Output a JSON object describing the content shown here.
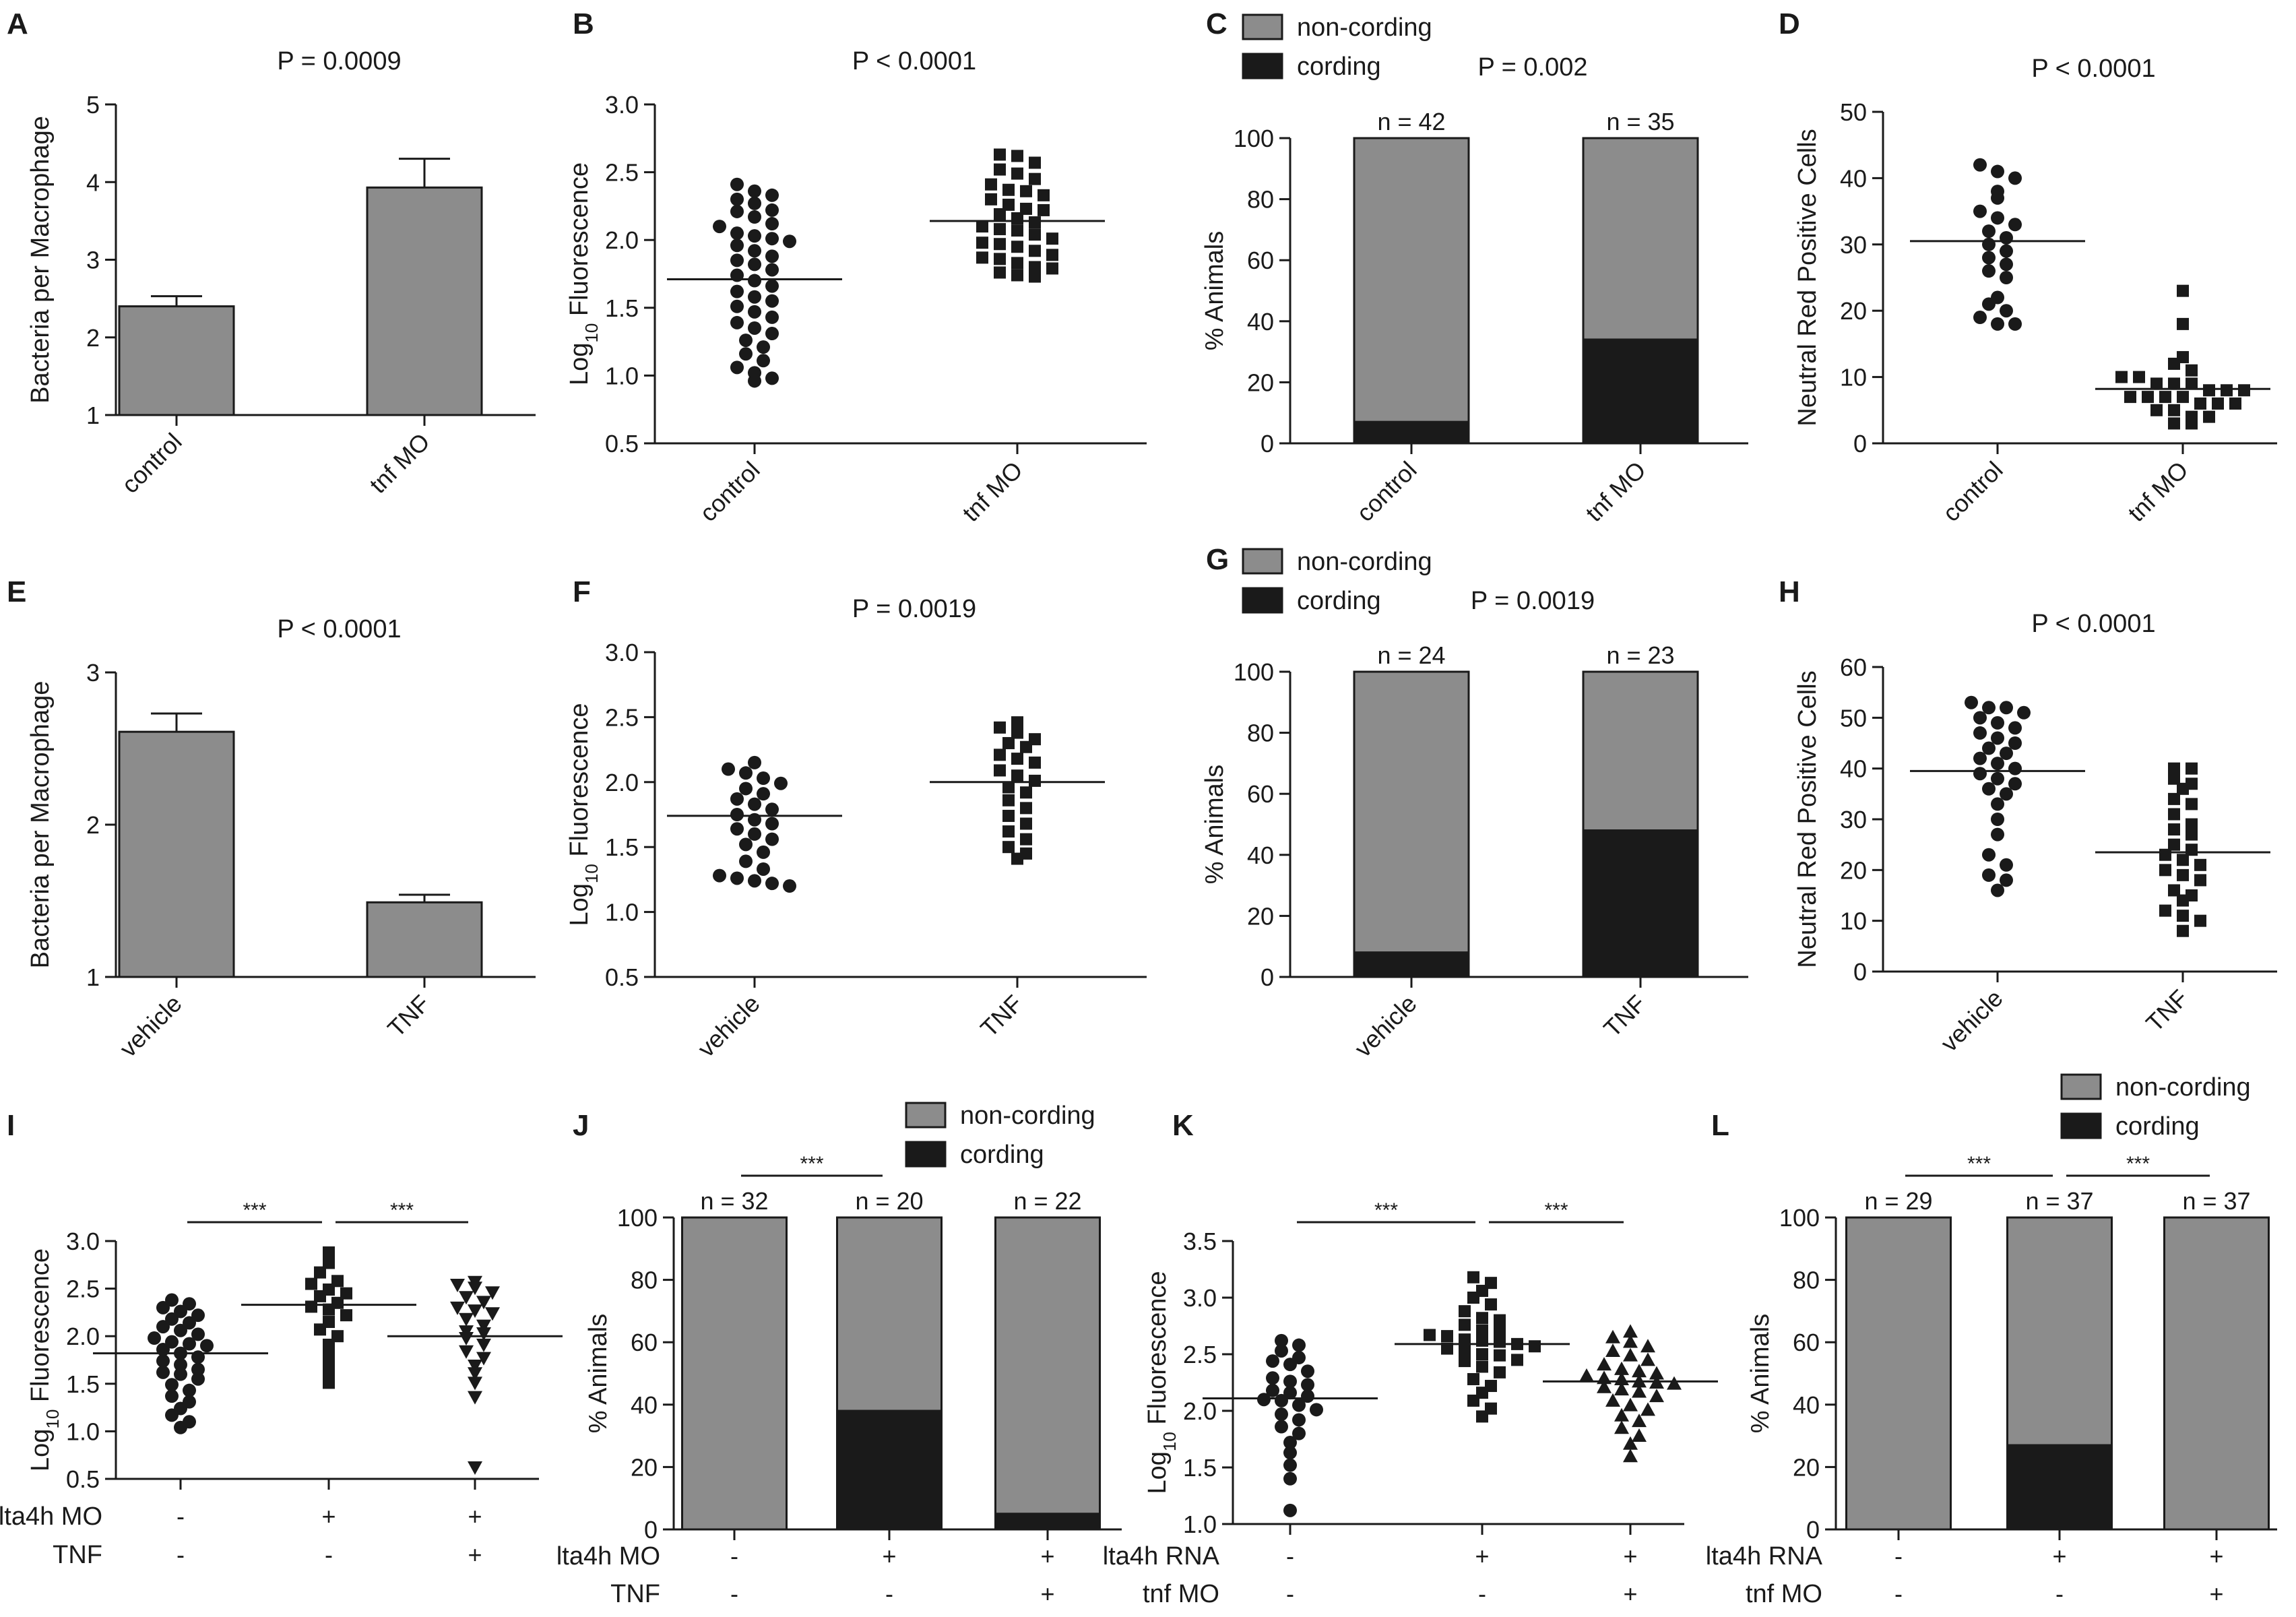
{
  "colors": {
    "ink": "#1a1a1a",
    "gray_bar": "#8c8c8c",
    "cording": "#1a1a1a",
    "noncording": "#8c8c8c"
  },
  "chart_data": [
    {
      "panel": "A",
      "type": "bar",
      "title": "P = 0.0009",
      "ylabel": "Bacteria per Macrophage",
      "ylim": [
        1,
        5
      ],
      "yticks": [
        1,
        2,
        3,
        4,
        5
      ],
      "categories": [
        "control",
        "tnf MO"
      ],
      "values": [
        2.4,
        3.93
      ],
      "errors": [
        0.13,
        0.37
      ]
    },
    {
      "panel": "B",
      "type": "scatter",
      "title": "P < 0.0001",
      "ylabel": "Log10 Fluorescence",
      "ylim": [
        0.5,
        3.0
      ],
      "yticks": [
        0.5,
        1.0,
        1.5,
        2.0,
        2.5,
        3.0
      ],
      "categories": [
        "control",
        "tnf MO"
      ],
      "markers": [
        "circle",
        "square"
      ],
      "means": [
        1.71,
        2.14
      ],
      "groups": [
        [
          2.41,
          2.36,
          2.33,
          2.3,
          2.27,
          2.22,
          2.21,
          2.17,
          2.12,
          2.1,
          2.05,
          2.03,
          2.01,
          1.99,
          1.96,
          1.92,
          1.88,
          1.85,
          1.82,
          1.78,
          1.74,
          1.7,
          1.66,
          1.62,
          1.58,
          1.55,
          1.51,
          1.47,
          1.43,
          1.39,
          1.35,
          1.31,
          1.26,
          1.21,
          1.16,
          1.11,
          1.06,
          1.02,
          0.98,
          0.96
        ],
        [
          2.63,
          2.62,
          2.57,
          2.52,
          2.49,
          2.45,
          2.41,
          2.37,
          2.33,
          2.3,
          2.26,
          2.22,
          2.19,
          2.16,
          2.13,
          2.1,
          2.07,
          2.04,
          2.01,
          1.98,
          1.95,
          1.92,
          1.89,
          1.86,
          1.83,
          1.8,
          1.76,
          1.73,
          1.74,
          1.79,
          1.87,
          1.97,
          2.08,
          2.23,
          2.36
        ]
      ]
    },
    {
      "panel": "C",
      "type": "bar",
      "stacked": true,
      "title": "P = 0.002",
      "ylabel": "% Animals",
      "ylim": [
        0,
        100
      ],
      "yticks": [
        0,
        20,
        40,
        60,
        80,
        100
      ],
      "categories": [
        "control",
        "tnf MO"
      ],
      "n_labels": [
        "n = 42",
        "n = 35"
      ],
      "series": [
        {
          "name": "cording",
          "values": [
            7,
            34
          ]
        },
        {
          "name": "non-cording",
          "values": [
            93,
            66
          ]
        }
      ]
    },
    {
      "panel": "D",
      "type": "scatter",
      "title": "P < 0.0001",
      "ylabel": "Neutral Red Positive Cells",
      "ylim": [
        0,
        50
      ],
      "yticks": [
        0,
        10,
        20,
        30,
        40,
        50
      ],
      "categories": [
        "control",
        "tnf MO"
      ],
      "markers": [
        "circle",
        "square"
      ],
      "means": [
        30.5,
        8.2
      ],
      "groups": [
        [
          42,
          41,
          40,
          38,
          37,
          35,
          34,
          33,
          32,
          31,
          30,
          29,
          28,
          27,
          26,
          25,
          22,
          21,
          20,
          19,
          18,
          18
        ],
        [
          23,
          18,
          13,
          12,
          11,
          10,
          10,
          9,
          9,
          9,
          8,
          8,
          8,
          7,
          7,
          7,
          7,
          6,
          6,
          6,
          5,
          5,
          4,
          4,
          3,
          3
        ]
      ]
    },
    {
      "panel": "E",
      "type": "bar",
      "title": "P < 0.0001",
      "ylabel": "Bacteria per Macrophage",
      "ylim": [
        1,
        3
      ],
      "yticks": [
        1,
        2,
        3
      ],
      "categories": [
        "vehicle",
        "TNF"
      ],
      "values": [
        2.61,
        1.49
      ],
      "errors": [
        0.12,
        0.05
      ]
    },
    {
      "panel": "F",
      "type": "scatter",
      "title": "P = 0.0019",
      "ylabel": "Log10 Fluorescence",
      "ylim": [
        0.5,
        3.0
      ],
      "yticks": [
        0.5,
        1.0,
        1.5,
        2.0,
        2.5,
        3.0
      ],
      "categories": [
        "vehicle",
        "TNF"
      ],
      "markers": [
        "circle",
        "square"
      ],
      "means": [
        1.74,
        2.0
      ],
      "groups": [
        [
          2.15,
          2.1,
          2.07,
          2.03,
          1.99,
          1.95,
          1.91,
          1.87,
          1.83,
          1.79,
          1.75,
          1.71,
          1.68,
          1.64,
          1.6,
          1.56,
          1.52,
          1.46,
          1.39,
          1.33,
          1.28,
          1.24,
          1.2,
          1.22,
          1.26
        ],
        [
          2.46,
          2.42,
          2.38,
          2.33,
          2.27,
          2.21,
          2.15,
          2.09,
          2.05,
          2.01,
          1.96,
          1.92,
          1.86,
          1.8,
          1.74,
          1.68,
          1.62,
          1.56,
          1.5,
          1.45,
          1.41,
          2.18,
          2.3
        ]
      ]
    },
    {
      "panel": "G",
      "type": "bar",
      "stacked": true,
      "title": "P = 0.0019",
      "ylabel": "% Animals",
      "ylim": [
        0,
        100
      ],
      "yticks": [
        0,
        20,
        40,
        60,
        80,
        100
      ],
      "categories": [
        "vehicle",
        "TNF"
      ],
      "n_labels": [
        "n = 24",
        "n = 23"
      ],
      "series": [
        {
          "name": "cording",
          "values": [
            8,
            48
          ]
        },
        {
          "name": "non-cording",
          "values": [
            92,
            52
          ]
        }
      ]
    },
    {
      "panel": "H",
      "type": "scatter",
      "title": "P < 0.0001",
      "ylabel": "Neutral Red Positive Cells",
      "ylim": [
        0,
        60
      ],
      "yticks": [
        0,
        10,
        20,
        30,
        40,
        50,
        60
      ],
      "categories": [
        "vehicle",
        "TNF"
      ],
      "markers": [
        "circle",
        "square"
      ],
      "means": [
        39.5,
        23.5
      ],
      "groups": [
        [
          53,
          52,
          52,
          51,
          50,
          49,
          48,
          47,
          46,
          45,
          44,
          43,
          42,
          41,
          40,
          39,
          38,
          37,
          36,
          35,
          33,
          30,
          27,
          23,
          21,
          19,
          18,
          16
        ],
        [
          40,
          40,
          38,
          37,
          36,
          34,
          33,
          31,
          29,
          28,
          27,
          25,
          24,
          23,
          22,
          21,
          20,
          19,
          18,
          16,
          15,
          14,
          12,
          11,
          10,
          8
        ]
      ]
    },
    {
      "panel": "I",
      "type": "scatter",
      "title": "",
      "ylabel": "Log10 Fluorescence",
      "ylim": [
        0.5,
        3.0
      ],
      "yticks": [
        0.5,
        1.0,
        1.5,
        2.0,
        2.5,
        3.0
      ],
      "categories": [
        "",
        "",
        ""
      ],
      "markers": [
        "circle",
        "square",
        "triangle-down"
      ],
      "means": [
        1.82,
        2.33,
        2.0
      ],
      "condition_rows": [
        {
          "label": "lta4h MO",
          "values": [
            "-",
            "+",
            "+"
          ]
        },
        {
          "label": "TNF",
          "values": [
            "-",
            "-",
            "+"
          ]
        }
      ],
      "significance": [
        {
          "from": 0,
          "to": 1,
          "label": "***"
        },
        {
          "from": 1,
          "to": 2,
          "label": "***"
        }
      ],
      "groups": [
        [
          2.38,
          2.34,
          2.3,
          2.26,
          2.22,
          2.18,
          2.14,
          2.1,
          2.06,
          2.02,
          1.98,
          1.94,
          1.9,
          1.86,
          1.82,
          1.78,
          1.74,
          1.7,
          1.65,
          1.6,
          1.55,
          1.49,
          1.43,
          1.37,
          1.31,
          1.24,
          1.17,
          1.1,
          1.04,
          1.62,
          1.92
        ],
        [
          2.88,
          2.77,
          2.67,
          2.58,
          2.49,
          2.42,
          2.35,
          2.28,
          2.22,
          2.15,
          2.07,
          2.0,
          1.91,
          1.82,
          1.73,
          1.62,
          1.51,
          2.45,
          2.55,
          2.31
        ],
        [
          2.57,
          2.54,
          2.51,
          2.46,
          2.41,
          2.36,
          2.3,
          2.24,
          2.18,
          2.11,
          2.05,
          1.98,
          1.91,
          1.84,
          1.77,
          1.69,
          1.61,
          1.51,
          1.36,
          0.62,
          2.27,
          2.03
        ]
      ]
    },
    {
      "panel": "J",
      "type": "bar",
      "stacked": true,
      "title": "",
      "ylabel": "% Animals",
      "ylim": [
        0,
        100
      ],
      "yticks": [
        0,
        20,
        40,
        60,
        80,
        100
      ],
      "categories": [
        "",
        "",
        ""
      ],
      "n_labels": [
        "n = 32",
        "n = 20",
        "n = 22"
      ],
      "condition_rows": [
        {
          "label": "lta4h MO",
          "values": [
            "-",
            "+",
            "+"
          ]
        },
        {
          "label": "TNF",
          "values": [
            "-",
            "-",
            "+"
          ]
        }
      ],
      "significance": [
        {
          "from": 0,
          "to": 1,
          "label": "***"
        }
      ],
      "series": [
        {
          "name": "cording",
          "values": [
            0,
            38,
            5
          ]
        },
        {
          "name": "non-cording",
          "values": [
            100,
            62,
            95
          ]
        }
      ]
    },
    {
      "panel": "K",
      "type": "scatter",
      "title": "",
      "ylabel": "Log10 Fluorescence",
      "ylim": [
        1.0,
        3.5
      ],
      "yticks": [
        1.0,
        1.5,
        2.0,
        2.5,
        3.0,
        3.5
      ],
      "categories": [
        "",
        "",
        ""
      ],
      "markers": [
        "circle",
        "square",
        "triangle-up"
      ],
      "means": [
        2.11,
        2.59,
        2.26
      ],
      "condition_rows": [
        {
          "label": "lta4h RNA",
          "values": [
            "-",
            "+",
            "+"
          ]
        },
        {
          "label": "tnf MO",
          "values": [
            "-",
            "-",
            "+"
          ]
        }
      ],
      "significance": [
        {
          "from": 0,
          "to": 1,
          "label": "***"
        },
        {
          "from": 1,
          "to": 2,
          "label": "***"
        }
      ],
      "groups": [
        [
          2.62,
          2.58,
          2.53,
          2.47,
          2.41,
          2.35,
          2.29,
          2.23,
          2.18,
          2.13,
          2.09,
          2.05,
          2.01,
          1.97,
          1.92,
          1.86,
          1.8,
          1.72,
          1.63,
          1.52,
          1.4,
          1.12,
          2.26,
          2.16,
          2.1,
          2.44
        ],
        [
          3.18,
          3.13,
          3.06,
          3.0,
          2.94,
          2.88,
          2.82,
          2.76,
          2.71,
          2.66,
          2.61,
          2.57,
          2.53,
          2.49,
          2.44,
          2.39,
          2.34,
          2.28,
          2.22,
          2.16,
          2.09,
          2.02,
          1.95,
          2.63,
          2.55,
          2.7,
          2.59,
          2.5,
          2.8,
          2.45,
          2.62,
          2.67
        ],
        [
          2.7,
          2.65,
          2.61,
          2.57,
          2.53,
          2.49,
          2.45,
          2.41,
          2.37,
          2.33,
          2.29,
          2.25,
          2.21,
          2.17,
          2.13,
          2.09,
          2.05,
          2.01,
          1.96,
          1.91,
          1.85,
          1.78,
          1.71,
          1.6,
          2.28,
          2.24,
          2.31,
          2.19,
          2.35,
          2.26
        ]
      ]
    },
    {
      "panel": "L",
      "type": "bar",
      "stacked": true,
      "title": "",
      "ylabel": "% Animals",
      "ylim": [
        0,
        100
      ],
      "yticks": [
        0,
        20,
        40,
        60,
        80,
        100
      ],
      "categories": [
        "",
        "",
        ""
      ],
      "n_labels": [
        "n = 29",
        "n = 37",
        "n = 37"
      ],
      "condition_rows": [
        {
          "label": "lta4h RNA",
          "values": [
            "-",
            "+",
            "+"
          ]
        },
        {
          "label": "tnf MO",
          "values": [
            "-",
            "-",
            "+"
          ]
        }
      ],
      "significance": [
        {
          "from": 0,
          "to": 1,
          "label": "***"
        },
        {
          "from": 1,
          "to": 2,
          "label": "***"
        }
      ],
      "series": [
        {
          "name": "cording",
          "values": [
            0,
            27,
            0
          ]
        },
        {
          "name": "non-cording",
          "values": [
            100,
            73,
            100
          ]
        }
      ]
    }
  ]
}
